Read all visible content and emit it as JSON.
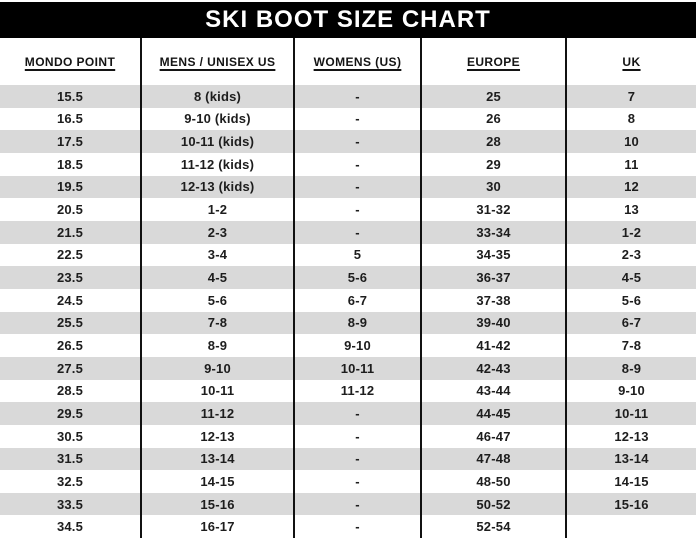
{
  "header": {
    "title": "SKI BOOT SIZE CHART"
  },
  "colors": {
    "title_bar_bg": "#000000",
    "title_text": "#ffffff",
    "row_alt_bg": "#d9d9d9",
    "row_base_bg": "#ffffff",
    "grid_line": "#111111",
    "cell_text": "#1d1d1d"
  },
  "chart_data": {
    "type": "table",
    "title": "SKI BOOT SIZE CHART",
    "columns": [
      "MONDO POINT",
      "MENS / UNISEX US",
      "WOMENS (US)",
      "EUROPE",
      "UK"
    ],
    "rows": [
      [
        "15.5",
        "8 (kids)",
        "-",
        "25",
        "7"
      ],
      [
        "16.5",
        "9-10 (kids)",
        "-",
        "26",
        "8"
      ],
      [
        "17.5",
        "10-11 (kids)",
        "-",
        "28",
        "10"
      ],
      [
        "18.5",
        "11-12 (kids)",
        "-",
        "29",
        "11"
      ],
      [
        "19.5",
        "12-13 (kids)",
        "-",
        "30",
        "12"
      ],
      [
        "20.5",
        "1-2",
        "-",
        "31-32",
        "13"
      ],
      [
        "21.5",
        "2-3",
        "-",
        "33-34",
        "1-2"
      ],
      [
        "22.5",
        "3-4",
        "5",
        "34-35",
        "2-3"
      ],
      [
        "23.5",
        "4-5",
        "5-6",
        "36-37",
        "4-5"
      ],
      [
        "24.5",
        "5-6",
        "6-7",
        "37-38",
        "5-6"
      ],
      [
        "25.5",
        "7-8",
        "8-9",
        "39-40",
        "6-7"
      ],
      [
        "26.5",
        "8-9",
        "9-10",
        "41-42",
        "7-8"
      ],
      [
        "27.5",
        "9-10",
        "10-11",
        "42-43",
        "8-9"
      ],
      [
        "28.5",
        "10-11",
        "11-12",
        "43-44",
        "9-10"
      ],
      [
        "29.5",
        "11-12",
        "-",
        "44-45",
        "10-11"
      ],
      [
        "30.5",
        "12-13",
        "-",
        "46-47",
        "12-13"
      ],
      [
        "31.5",
        "13-14",
        "-",
        "47-48",
        "13-14"
      ],
      [
        "32.5",
        "14-15",
        "-",
        "48-50",
        "14-15"
      ],
      [
        "33.5",
        "15-16",
        "-",
        "50-52",
        "15-16"
      ],
      [
        "34.5",
        "16-17",
        "-",
        "52-54",
        ""
      ]
    ]
  }
}
